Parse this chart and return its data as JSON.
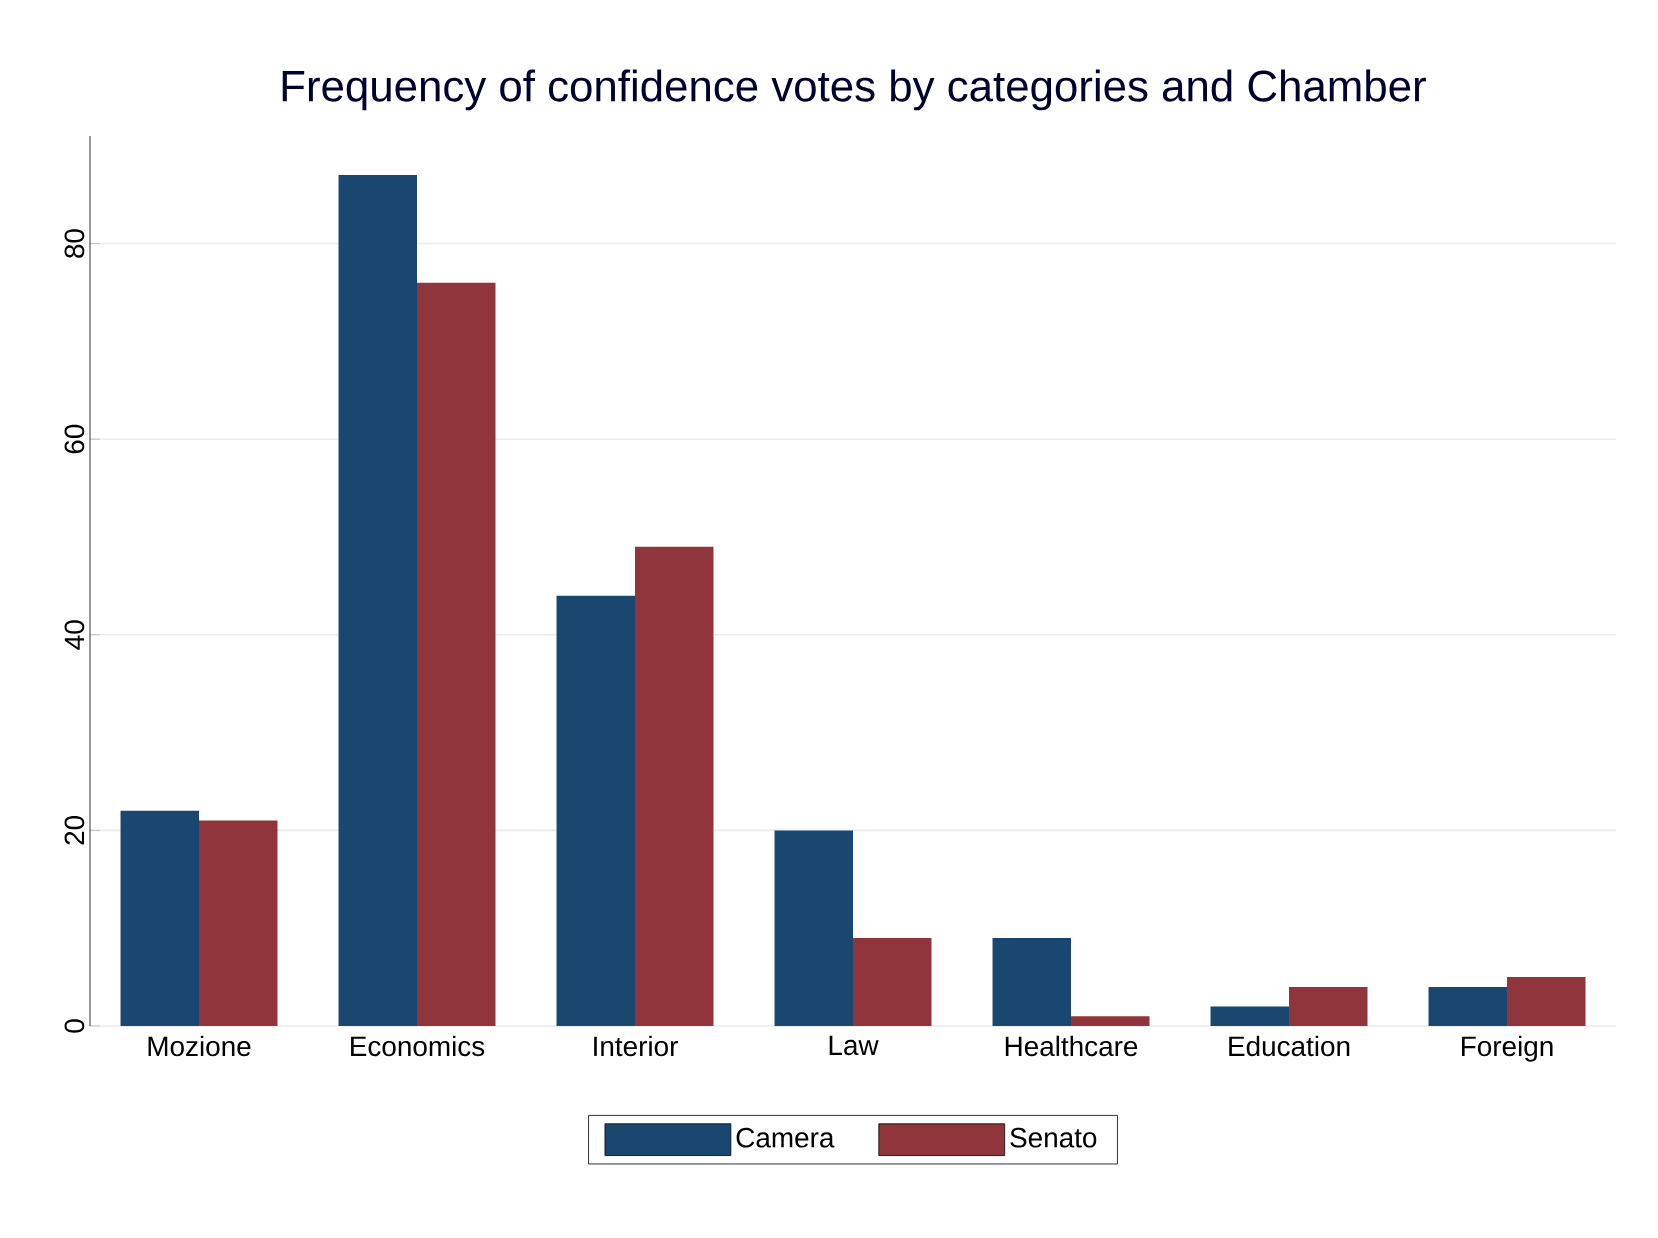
{
  "chart_data": {
    "type": "bar",
    "title": "Frequency of confidence votes by categories and Chamber",
    "categories": [
      "Mozione",
      "Economics",
      "Interior",
      "Law",
      "Healthcare",
      "Education",
      "Foreign"
    ],
    "series": [
      {
        "name": "Camera",
        "color": "#1a476f",
        "values": [
          22,
          87,
          44,
          20,
          9,
          2,
          4
        ]
      },
      {
        "name": "Senato",
        "color": "#90353b",
        "values": [
          21,
          76,
          49,
          9,
          1,
          4,
          5
        ]
      }
    ],
    "ylim": [
      0,
      91
    ],
    "yticks": [
      0,
      20,
      40,
      60,
      80
    ],
    "grid": "y",
    "legend": "bottom"
  }
}
